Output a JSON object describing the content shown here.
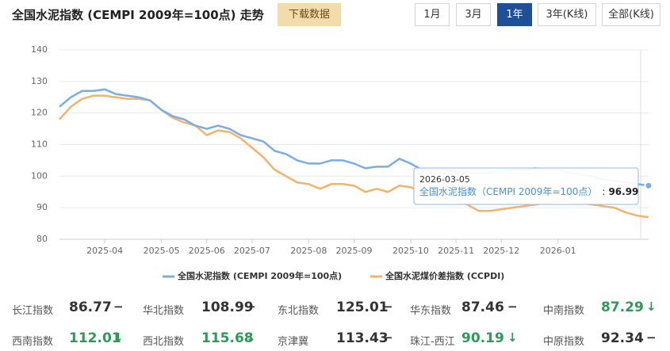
{
  "header": {
    "title": "全国水泥指数 (CEMPI 2009年=100点) 走势",
    "download": "下载数据",
    "ranges": [
      "1月",
      "3月",
      "1年",
      "3年(K线)",
      "全部(K线)"
    ],
    "active_range": 2
  },
  "chart_data": {
    "type": "line",
    "categories": [
      null,
      null,
      null,
      null,
      "2025-04",
      null,
      null,
      null,
      null,
      "2025-05",
      null,
      null,
      null,
      "2025-06",
      null,
      null,
      null,
      "2025-07",
      null,
      null,
      null,
      null,
      "2025-08",
      null,
      null,
      null,
      "2025-09",
      null,
      null,
      null,
      null,
      "2025-10",
      null,
      null,
      null,
      "2025-11",
      null,
      null,
      null,
      "2025-12",
      null,
      null,
      null,
      null,
      "2026-01",
      null,
      null,
      null,
      null,
      null,
      null,
      null,
      null
    ],
    "series": [
      {
        "name": "全国水泥指数 (CEMPI 2009年=100点)",
        "color": "#7aaee3",
        "values": [
          122,
          125,
          127,
          127,
          127.5,
          126,
          125.5,
          125,
          124,
          121,
          119,
          118,
          116,
          115,
          116,
          115,
          113,
          112,
          111,
          108,
          107,
          105,
          104,
          104,
          105,
          105,
          104,
          102.5,
          103,
          103,
          105.5,
          104,
          102,
          102,
          102,
          101.5,
          101,
          101,
          101,
          101.5,
          102,
          102,
          102.5,
          102,
          102,
          101,
          100.5,
          100,
          99,
          98.5,
          98,
          97.5,
          96.99
        ]
      },
      {
        "name": "全国水泥煤价差指数 (CCPDI)",
        "color": "#f2b36b",
        "values": [
          118,
          122,
          124.5,
          125.5,
          125.5,
          125,
          124.5,
          124.5,
          124,
          121,
          118.5,
          117,
          116,
          113,
          114.5,
          114,
          112,
          109,
          106,
          102,
          100,
          98,
          97.5,
          96,
          97.5,
          97.5,
          97,
          95,
          96,
          95,
          97,
          96.5,
          95,
          94,
          93,
          92,
          91,
          89,
          89,
          89.5,
          90,
          90.5,
          91,
          91.5,
          92,
          92,
          91.5,
          91,
          90.5,
          90,
          88.5,
          87.5,
          87
        ]
      }
    ],
    "ylim": [
      80,
      140
    ],
    "yticks": [
      80,
      90,
      100,
      110,
      120,
      130,
      140
    ],
    "grid": true,
    "tooltip": {
      "date": "2026-03-05",
      "label": "全国水泥指数（CEMPI 2009年=100点）",
      "separator": ":",
      "value": 96.99
    }
  },
  "indices": {
    "rows": [
      [
        {
          "name": "长江指数",
          "value": 86.77,
          "trend": "−",
          "color": "#333333"
        },
        {
          "name": "华北指数",
          "value": 108.99,
          "trend": "−",
          "color": "#333333"
        },
        {
          "name": "东北指数",
          "value": 125.01,
          "trend": "−",
          "color": "#333333"
        },
        {
          "name": "华东指数",
          "value": 87.46,
          "trend": "−",
          "color": "#333333"
        },
        {
          "name": "中南指数",
          "value": 87.29,
          "trend": "↓",
          "color": "#2e9a57"
        }
      ],
      [
        {
          "name": "西南指数",
          "value": 112.01,
          "trend": "↓",
          "color": "#2e9a57"
        },
        {
          "name": "西北指数",
          "value": 115.68,
          "trend": "↓",
          "color": "#2e9a57"
        },
        {
          "name": "京津冀",
          "value": 113.43,
          "trend": "−",
          "color": "#333333"
        },
        {
          "name": "珠江-西江",
          "value": 90.19,
          "trend": "↓",
          "color": "#2e9a57"
        },
        {
          "name": "中原指数",
          "value": 92.34,
          "trend": "−",
          "color": "#333333"
        }
      ]
    ]
  }
}
